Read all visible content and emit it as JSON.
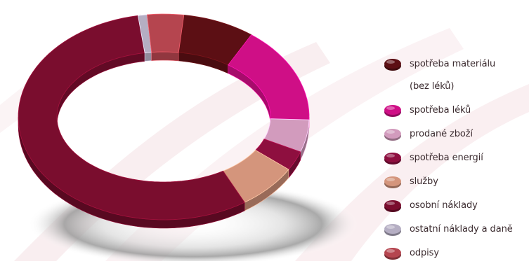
{
  "chart_data": {
    "type": "pie",
    "style": "3d-donut",
    "categories": [
      "spotřeba materiálu (bez léků)",
      "spotřeba léků",
      "prodané zboží",
      "spotřeba energií",
      "služby",
      "osobní náklady",
      "ostatní náklady a daně",
      "odpisy"
    ],
    "values": [
      8,
      15,
      5,
      3,
      7,
      56,
      1,
      4
    ],
    "value_unit": "percent",
    "colors": [
      "#5c0f14",
      "#cf0f86",
      "#d29bbd",
      "#8e0f3f",
      "#d4957c",
      "#7a0d2e",
      "#b5aec3",
      "#b5454f"
    ],
    "legend_position": "right"
  },
  "legend": {
    "items": [
      {
        "lines": [
          "spotřeba materiálu",
          "(bez léků)"
        ],
        "color": "#5c0f14"
      },
      {
        "lines": [
          "spotřeba léků"
        ],
        "color": "#cf0f86"
      },
      {
        "lines": [
          "prodané zboží"
        ],
        "color": "#d29bbd"
      },
      {
        "lines": [
          "spotřeba energií"
        ],
        "color": "#8e0f3f"
      },
      {
        "lines": [
          "služby"
        ],
        "color": "#d4957c"
      },
      {
        "lines": [
          "osobní náklady"
        ],
        "color": "#7a0d2e"
      },
      {
        "lines": [
          "ostatní náklady a daně"
        ],
        "color": "#b5aec3"
      },
      {
        "lines": [
          "odpisy"
        ],
        "color": "#b5454f"
      }
    ]
  }
}
